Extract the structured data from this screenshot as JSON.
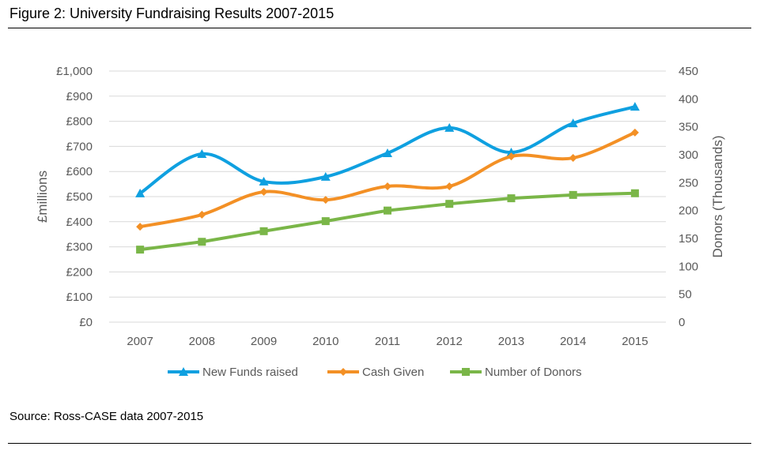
{
  "title": "Figure 2: University Fundraising Results 2007-2015",
  "source": "Source: Ross-CASE data 2007-2015",
  "chart_data": {
    "type": "line",
    "categories": [
      "2007",
      "2008",
      "2009",
      "2010",
      "2011",
      "2012",
      "2013",
      "2014",
      "2015"
    ],
    "ylabel": "£millions",
    "y2label": "Donors (Thousands)",
    "ylim": [
      0,
      1000
    ],
    "y2lim": [
      0,
      450
    ],
    "yticks": [
      "£0",
      "£100",
      "£200",
      "£300",
      "£400",
      "£500",
      "£600",
      "£700",
      "£800",
      "£900",
      "£1,000"
    ],
    "y2ticks": [
      "0",
      "50",
      "100",
      "150",
      "200",
      "250",
      "300",
      "350",
      "400",
      "450"
    ],
    "grid": true,
    "legend": "bottom",
    "series": [
      {
        "name": "New Funds raised",
        "axis": "left",
        "smooth": true,
        "marker": "triangle",
        "color": "#0FA0E0",
        "values": [
          513,
          670,
          560,
          579,
          673,
          774,
          676,
          792,
          858
        ]
      },
      {
        "name": "Cash Given",
        "axis": "left",
        "smooth": true,
        "marker": "diamond",
        "color": "#F39025",
        "values": [
          380,
          428,
          519,
          487,
          541,
          541,
          660,
          654,
          755
        ]
      },
      {
        "name": "Number of Donors",
        "axis": "right",
        "smooth": false,
        "marker": "square",
        "color": "#7AB648",
        "values": [
          130,
          144,
          163,
          181,
          200,
          212,
          222,
          228,
          231
        ]
      }
    ]
  }
}
